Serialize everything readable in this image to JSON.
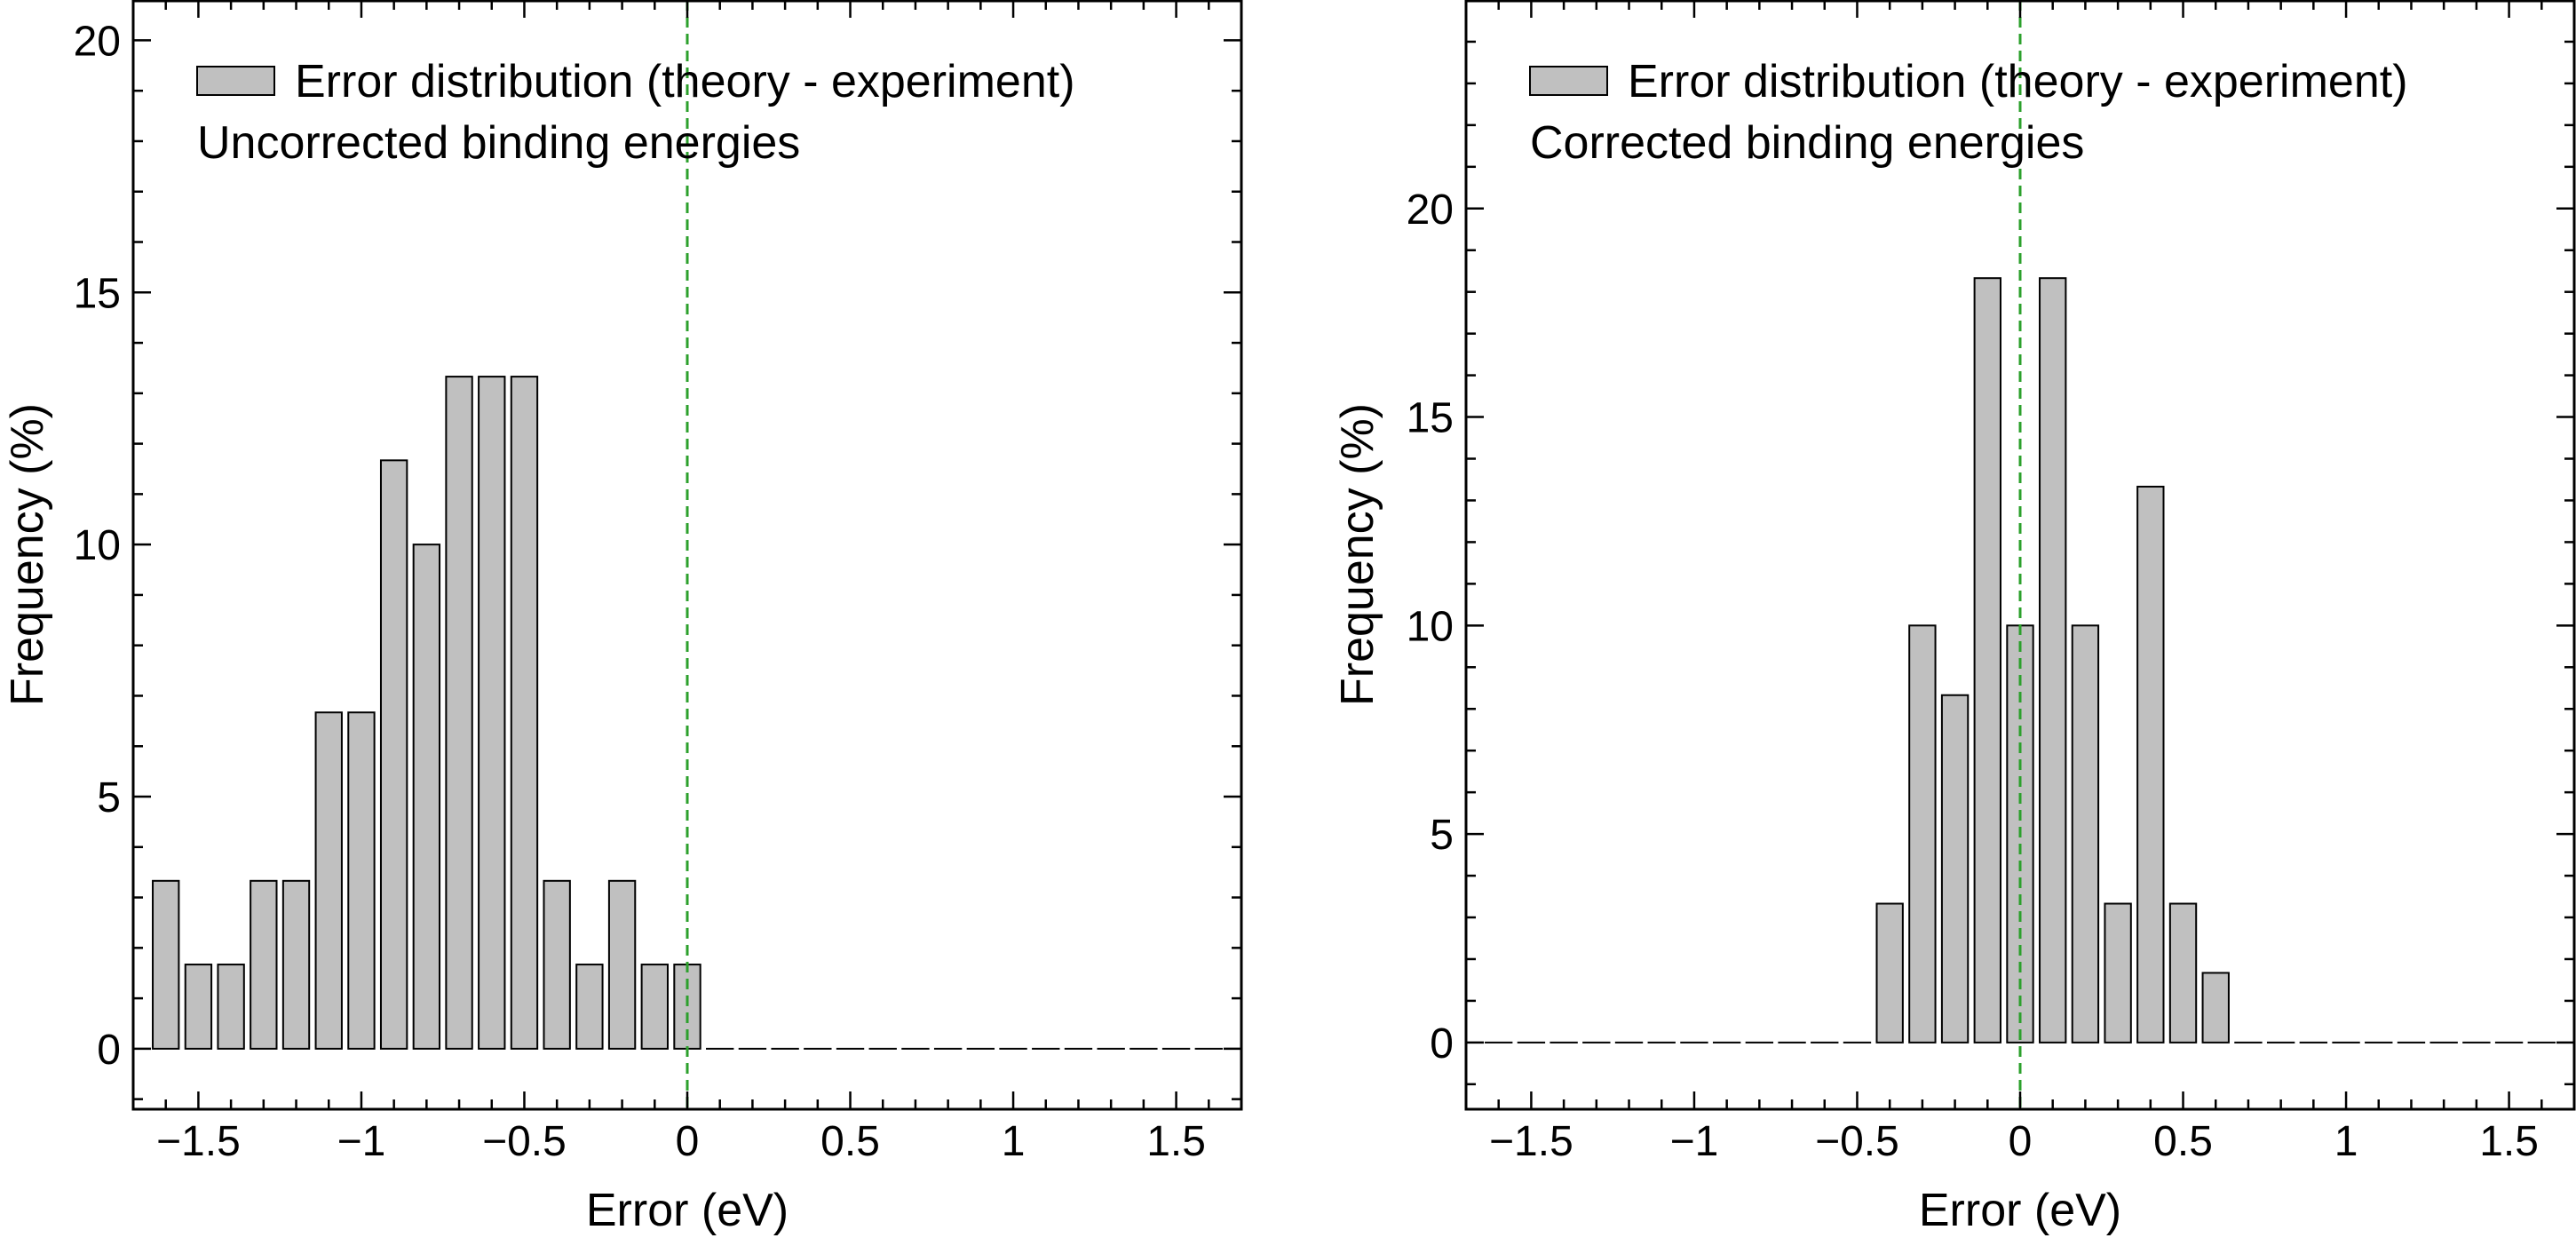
{
  "chart_data": [
    {
      "type": "bar",
      "title": "",
      "xlabel": "Error (eV)",
      "ylabel": "Frequency (%)",
      "xlim": [
        -1.7,
        1.7
      ],
      "ylim": [
        -1.2,
        20.8
      ],
      "xticks": [
        -1.5,
        -1,
        -0.5,
        0,
        0.5,
        1,
        1.5
      ],
      "xtick_labels": [
        "−1.5",
        "−1",
        "−0.5",
        "0",
        "0.5",
        "1",
        "1.5"
      ],
      "yticks": [
        0,
        5,
        10,
        15,
        20
      ],
      "ytick_labels": [
        "0",
        "5",
        "10",
        "15",
        "20"
      ],
      "legend": {
        "label": "Error distribution (theory - experiment)",
        "placement": "top-left"
      },
      "annotation": "Uncorrected binding energies",
      "reference_line": {
        "x": 0,
        "style": "dashed",
        "color": "#2ca02c"
      },
      "bar_width": 0.08,
      "bar_color": "#c0c0c0",
      "x": [
        -1.6,
        -1.5,
        -1.4,
        -1.3,
        -1.2,
        -1.1,
        -1.0,
        -0.9,
        -0.8,
        -0.7,
        -0.6,
        -0.5,
        -0.4,
        -0.3,
        -0.2,
        -0.1,
        0.0,
        0.1,
        0.2,
        0.3,
        0.4,
        0.5,
        0.6,
        0.7,
        0.8,
        0.9,
        1.0,
        1.1,
        1.2,
        1.3,
        1.4,
        1.5,
        1.6
      ],
      "values": [
        3.33,
        1.67,
        1.67,
        3.33,
        3.33,
        6.67,
        6.67,
        11.67,
        10.0,
        13.33,
        13.33,
        13.33,
        3.33,
        1.67,
        3.33,
        1.67,
        1.67,
        0,
        0,
        0,
        0,
        0,
        0,
        0,
        0,
        0,
        0,
        0,
        0,
        0,
        0,
        0,
        0
      ]
    },
    {
      "type": "bar",
      "title": "",
      "xlabel": "Error (eV)",
      "ylabel": "Frequency (%)",
      "xlim": [
        -1.7,
        1.7
      ],
      "ylim": [
        -1.6,
        25.0
      ],
      "xticks": [
        -1.5,
        -1,
        -0.5,
        0,
        0.5,
        1,
        1.5
      ],
      "xtick_labels": [
        "−1.5",
        "−1",
        "−0.5",
        "0",
        "0.5",
        "1",
        "1.5"
      ],
      "yticks": [
        0,
        5,
        10,
        15,
        20
      ],
      "ytick_labels": [
        "0",
        "5",
        "10",
        "15",
        "20"
      ],
      "legend": {
        "label": "Error distribution (theory - experiment)",
        "placement": "top-left"
      },
      "annotation": "Corrected binding energies",
      "reference_line": {
        "x": 0,
        "style": "dashed",
        "color": "#2ca02c"
      },
      "bar_width": 0.08,
      "bar_color": "#c0c0c0",
      "x": [
        -1.6,
        -1.5,
        -1.4,
        -1.3,
        -1.2,
        -1.1,
        -1.0,
        -0.9,
        -0.8,
        -0.7,
        -0.6,
        -0.5,
        -0.4,
        -0.3,
        -0.2,
        -0.1,
        0.0,
        0.1,
        0.2,
        0.3,
        0.4,
        0.5,
        0.6,
        0.7,
        0.8,
        0.9,
        1.0,
        1.1,
        1.2,
        1.3,
        1.4,
        1.5,
        1.6
      ],
      "values": [
        0,
        0,
        0,
        0,
        0,
        0,
        0,
        0,
        0,
        0,
        0,
        0,
        3.33,
        10.0,
        8.33,
        18.33,
        10.0,
        18.33,
        10.0,
        3.33,
        13.33,
        3.33,
        1.67,
        0,
        0,
        0,
        0,
        0,
        0,
        0,
        0,
        0,
        0
      ]
    }
  ]
}
